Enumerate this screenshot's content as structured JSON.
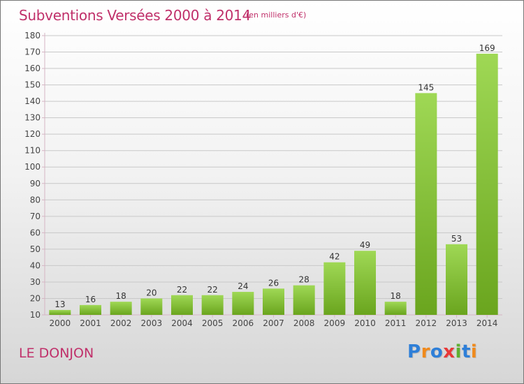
{
  "header": {
    "title": "Subventions Versées 2000 à 2014",
    "subtitle": "(en milliers d'€)"
  },
  "footer": {
    "commune": "LE DONJON",
    "logo_text": "Proxiti",
    "logo_letters": [
      "P",
      "r",
      "o",
      "x",
      "i",
      "t",
      "i"
    ],
    "logo_colors": [
      "#2e7fd8",
      "#f08a1c",
      "#2e7fd8",
      "#e83838",
      "#5fb030",
      "#2e7fd8",
      "#f08a1c"
    ]
  },
  "colors": {
    "bar_light": "#9fd855",
    "bar_dark": "#6aa51e",
    "grid": "#c8c8c8",
    "axis": "#d6b5c4",
    "title": "#c0306a"
  },
  "chart_data": {
    "type": "bar",
    "title": "Subventions Versées 2000 à 2014",
    "subtitle": "(en milliers d'€)",
    "xlabel": "",
    "ylabel": "",
    "categories": [
      "2000",
      "2001",
      "2002",
      "2003",
      "2004",
      "2005",
      "2006",
      "2007",
      "2008",
      "2009",
      "2010",
      "2011",
      "2012",
      "2013",
      "2014"
    ],
    "values": [
      13,
      16,
      18,
      20,
      22,
      22,
      24,
      26,
      28,
      42,
      49,
      18,
      145,
      53,
      169
    ],
    "ylim": [
      10,
      180
    ],
    "yticks": [
      10,
      20,
      30,
      40,
      50,
      60,
      70,
      80,
      90,
      100,
      110,
      120,
      130,
      140,
      150,
      160,
      170,
      180
    ],
    "grid": true,
    "legend": "none"
  }
}
